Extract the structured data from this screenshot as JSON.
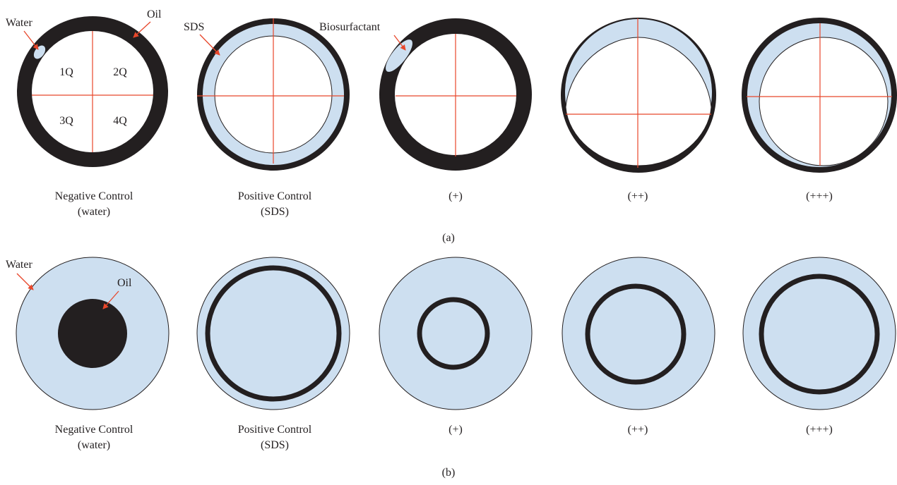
{
  "colors": {
    "oil": "#231f20",
    "water": "#cddff0",
    "crosshair": "#e8472b",
    "arrow": "#e8472b",
    "outline": "#231f20"
  },
  "panel_a": {
    "caption": "(a)",
    "quadrants": [
      "1Q",
      "2Q",
      "3Q",
      "4Q"
    ],
    "annotations": {
      "water": "Water",
      "oil": "Oil",
      "sds": "SDS",
      "biosurfactant": "Biosurfactant"
    },
    "items": [
      {
        "line1": "Negative Control",
        "line2": "(water)"
      },
      {
        "line1": "Positive Control",
        "line2": "(SDS)"
      },
      {
        "line1": "(+)",
        "line2": ""
      },
      {
        "line1": "(++)",
        "line2": ""
      },
      {
        "line1": "(+++)",
        "line2": ""
      }
    ]
  },
  "panel_b": {
    "caption": "(b)",
    "annotations": {
      "water": "Water",
      "oil": "Oil"
    },
    "items": [
      {
        "line1": "Negative Control",
        "line2": "(water)"
      },
      {
        "line1": "Positive Control",
        "line2": "(SDS)"
      },
      {
        "line1": "(+)",
        "line2": ""
      },
      {
        "line1": "(++)",
        "line2": ""
      },
      {
        "line1": "(+++)",
        "line2": ""
      }
    ]
  }
}
